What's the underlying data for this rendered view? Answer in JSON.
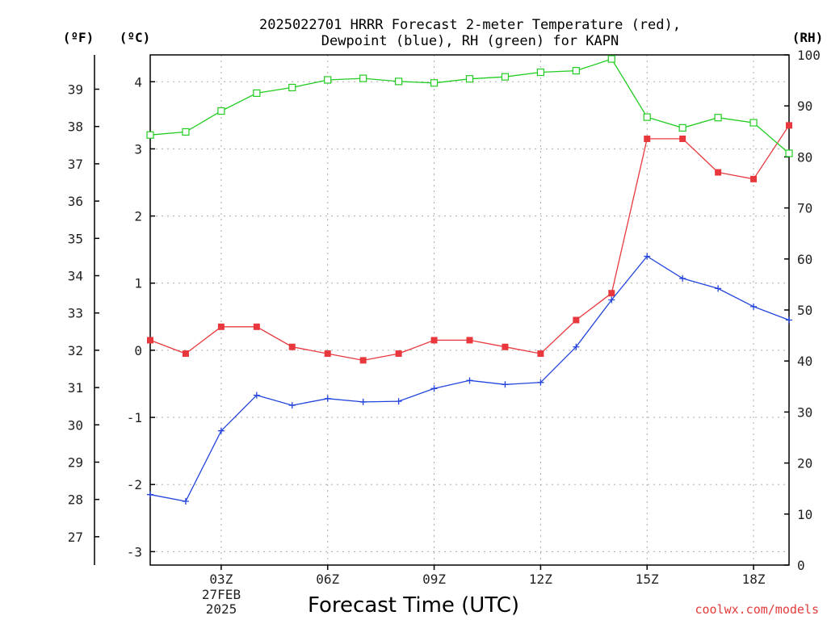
{
  "chart_data": {
    "type": "line",
    "title_line1": "2025022701 HRRR Forecast 2-meter Temperature (red),",
    "title_line2": "Dewpoint (blue), RH (green) for KAPN",
    "xlabel": "Forecast Time (UTC)",
    "date_label_1": "27FEB",
    "date_label_2": "2025",
    "credit": "coolwx.com/models",
    "unit_labels": {
      "fahrenheit": "(ºF)",
      "celsius": "(ºC)",
      "rh": "(RH)"
    },
    "x_hours": [
      1,
      2,
      3,
      4,
      5,
      6,
      7,
      8,
      9,
      10,
      11,
      12,
      13,
      14,
      15,
      16,
      17,
      18,
      19
    ],
    "x_ticks": [
      {
        "hour": 3,
        "label": "03Z"
      },
      {
        "hour": 6,
        "label": "06Z"
      },
      {
        "hour": 9,
        "label": "09Z"
      },
      {
        "hour": 12,
        "label": "12Z"
      },
      {
        "hour": 15,
        "label": "15Z"
      },
      {
        "hour": 18,
        "label": "18Z"
      }
    ],
    "xlim": [
      1,
      19
    ],
    "ylim_c": [
      -3.2,
      4.4
    ],
    "ylim_f": [
      26.24,
      39.92
    ],
    "ylim_rh": [
      0,
      100
    ],
    "yticks_c": [
      "-3",
      "-2",
      "-1",
      "0",
      "1",
      "2",
      "3",
      "4"
    ],
    "yticks_f": [
      "27",
      "28",
      "29",
      "30",
      "31",
      "32",
      "33",
      "34",
      "35",
      "36",
      "37",
      "38",
      "39"
    ],
    "yticks_rh": [
      "0",
      "10",
      "20",
      "30",
      "40",
      "50",
      "60",
      "70",
      "80",
      "90",
      "100"
    ],
    "grid": true,
    "series": [
      {
        "name": "Temperature",
        "axis": "c",
        "color": "#e8383d",
        "marker": "filled-square",
        "values": [
          0.15,
          -0.05,
          0.35,
          0.35,
          0.05,
          -0.05,
          -0.15,
          -0.05,
          0.15,
          0.15,
          0.05,
          -0.05,
          0.45,
          0.85,
          3.15,
          3.15,
          2.65,
          2.55,
          3.35
        ]
      },
      {
        "name": "Dewpoint",
        "axis": "c",
        "color": "#2244dd",
        "marker": "plus",
        "values": [
          -2.15,
          -2.25,
          -1.2,
          -0.67,
          -0.82,
          -0.72,
          -0.77,
          -0.76,
          -0.57,
          -0.45,
          -0.51,
          -0.48,
          0.05,
          0.75,
          1.4,
          1.07,
          0.92,
          0.65,
          0.45
        ]
      },
      {
        "name": "RH",
        "axis": "rh",
        "color": "#22cc22",
        "marker": "open-square",
        "values": [
          84.3,
          84.9,
          89,
          92.5,
          93.6,
          95.1,
          95.4,
          94.8,
          94.5,
          95.3,
          95.7,
          96.6,
          96.9,
          99.2,
          87.8,
          85.7,
          87.7,
          86.7,
          80.7
        ]
      }
    ]
  }
}
